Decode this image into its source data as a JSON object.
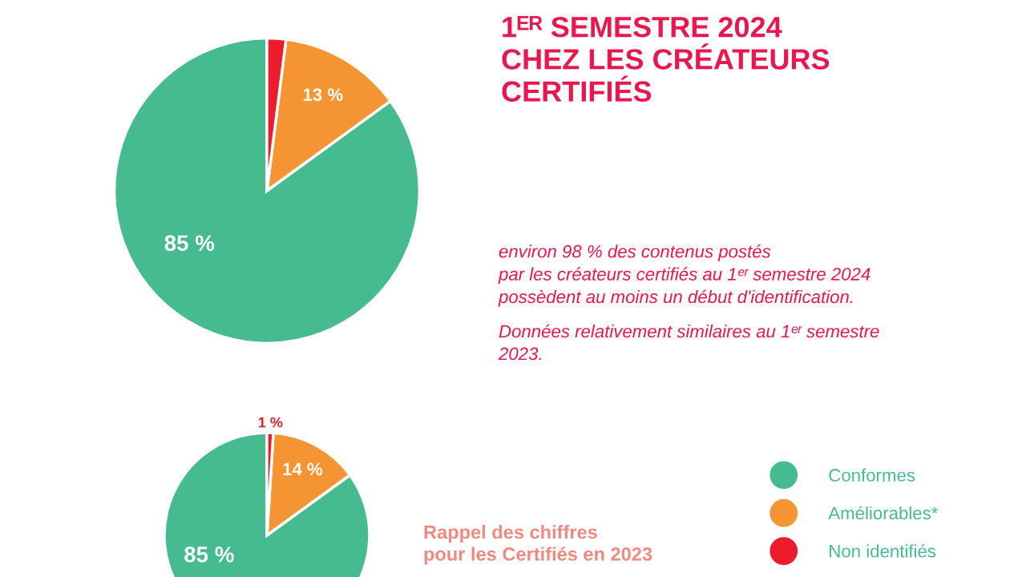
{
  "chart_data": [
    {
      "type": "pie",
      "title": "1ᴱᴿ SEMESTRE 2024\nCHEZ LES CRÉATEURS\nCERTIFIÉS",
      "categories": [
        null,
        null,
        null
      ],
      "values": [
        85,
        13,
        2
      ],
      "colors": [
        "#45bb8f",
        "#f59432",
        "#ec1c2c"
      ],
      "value_labels": [
        "85 %",
        "13 %",
        null
      ],
      "annotations": [
        "environ 98 % des contenus postés\npar les créateurs certifiés au 1ᵉʳ semestre 2024\npossèdent au moins un début d'identification.",
        "Données relativement similaires au 1ᵉʳ semestre\n2023."
      ]
    },
    {
      "type": "pie",
      "title": "Rappel des chiffres\npour les Certifiés en 2023",
      "categories": [
        "Conformes",
        "Améliorables*",
        "Non identifiés"
      ],
      "values": [
        85,
        14,
        1
      ],
      "colors": [
        "#45bb8f",
        "#f59432",
        "#ec1c2c"
      ],
      "value_labels": [
        "85 %",
        "14 %",
        "1 %"
      ],
      "legend": "top right"
    }
  ]
}
